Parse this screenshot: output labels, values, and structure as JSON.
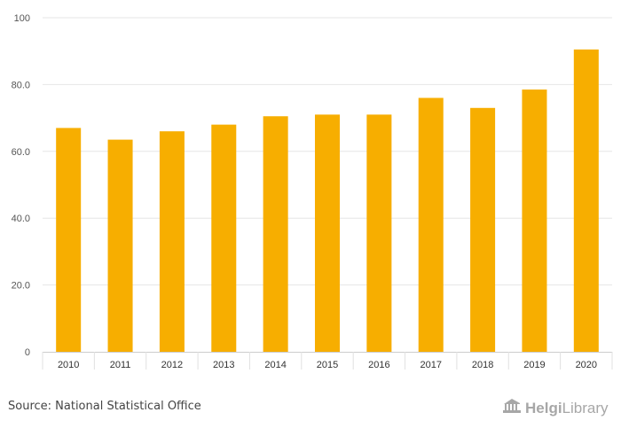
{
  "chart_data": {
    "type": "bar",
    "categories": [
      "2010",
      "2011",
      "2012",
      "2013",
      "2014",
      "2015",
      "2016",
      "2017",
      "2018",
      "2019",
      "2020"
    ],
    "values": [
      67.0,
      63.5,
      66.0,
      68.0,
      70.5,
      71.0,
      71.0,
      76.0,
      73.0,
      78.5,
      90.5
    ],
    "ylim": [
      0,
      100
    ],
    "yticks": [
      {
        "value": 0,
        "label": "0"
      },
      {
        "value": 20,
        "label": "20.0"
      },
      {
        "value": 40,
        "label": "40.0"
      },
      {
        "value": 60,
        "label": "60.0"
      },
      {
        "value": 80,
        "label": "80.0"
      },
      {
        "value": 100,
        "label": "100"
      }
    ],
    "title": "",
    "xlabel": "",
    "ylabel": "",
    "grid": true,
    "bar_color": "#f7ae00"
  },
  "footer": {
    "source": "Source: National Statistical Office",
    "logo_helgi": "Helgi",
    "logo_library": "Library",
    "logo_icon": "library-building-icon"
  }
}
